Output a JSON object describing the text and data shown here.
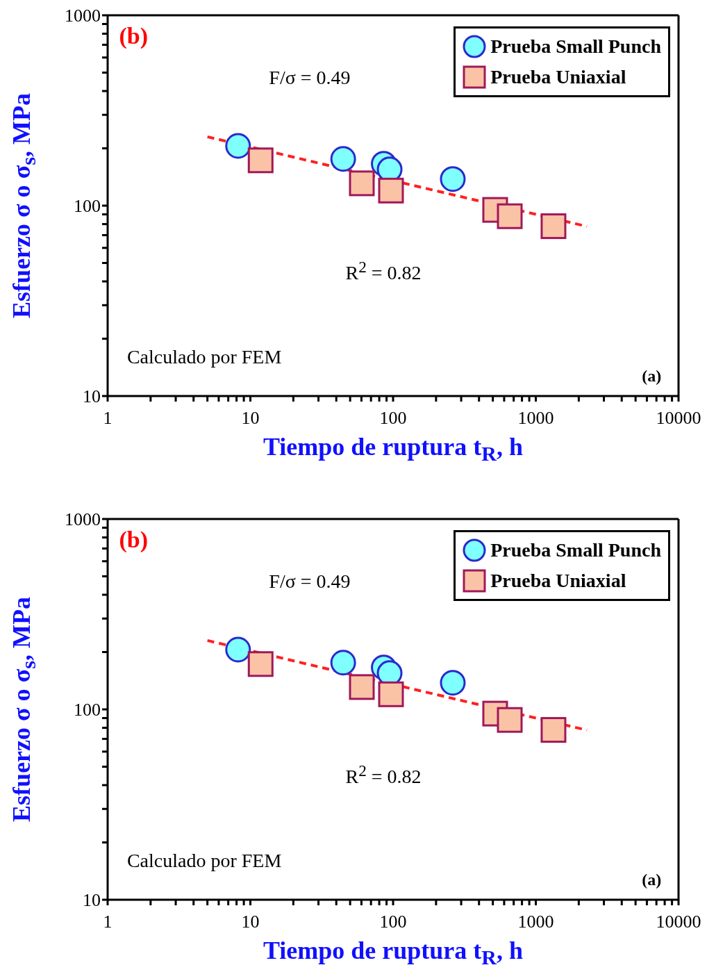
{
  "chart_data": [
    {
      "type": "scatter",
      "xlabel": "Tiempo de ruptura t$_{R}$, h",
      "ylabel": "Esfuerzo σ o σ$_{s}$, MPa",
      "log": "xy",
      "grid": false,
      "legend": "top right",
      "annotations": [
        "(b)",
        "F/σ = 0.49",
        "R$^{2}$ = 0.82",
        "Calculado por FEM",
        "(a)"
      ],
      "xlim": [
        1,
        10000
      ],
      "ylim": [
        10,
        1000
      ],
      "xticks": [
        1,
        {
          "value": 2,
          "label": null
        },
        {
          "value": 3,
          "label": null
        },
        {
          "value": 4,
          "label": null
        },
        {
          "value": 5,
          "label": null
        },
        {
          "value": 6,
          "label": null
        },
        {
          "value": 7,
          "label": null
        },
        {
          "value": 8,
          "label": null
        },
        {
          "value": 9,
          "label": null
        },
        10,
        {
          "value": 20,
          "label": null
        },
        {
          "value": 30,
          "label": null
        },
        {
          "value": 40,
          "label": null
        },
        {
          "value": 50,
          "label": null
        },
        {
          "value": 60,
          "label": null
        },
        {
          "value": 70,
          "label": null
        },
        {
          "value": 80,
          "label": null
        },
        {
          "value": 90,
          "label": null
        },
        100,
        {
          "value": 200,
          "label": null
        },
        {
          "value": 300,
          "label": null
        },
        {
          "value": 400,
          "label": null
        },
        {
          "value": 500,
          "label": null
        },
        {
          "value": 600,
          "label": null
        },
        {
          "value": 700,
          "label": null
        },
        {
          "value": 800,
          "label": null
        },
        {
          "value": 900,
          "label": null
        },
        1000,
        {
          "value": 2000,
          "label": null
        },
        {
          "value": 3000,
          "label": null
        },
        {
          "value": 4000,
          "label": null
        },
        {
          "value": 5000,
          "label": null
        },
        {
          "value": 6000,
          "label": null
        },
        {
          "value": 7000,
          "label": null
        },
        {
          "value": 8000,
          "label": null
        },
        {
          "value": 9000,
          "label": null
        },
        10000
      ],
      "yticks": [
        10,
        {
          "value": 20,
          "label": null
        },
        {
          "value": 30,
          "label": null
        },
        {
          "value": 40,
          "label": null
        },
        {
          "value": 50,
          "label": null
        },
        {
          "value": 60,
          "label": null
        },
        {
          "value": 70,
          "label": null
        },
        {
          "value": 80,
          "label": null
        },
        {
          "value": 90,
          "label": null
        },
        100,
        {
          "value": 200,
          "label": null
        },
        {
          "value": 300,
          "label": null
        },
        {
          "value": 400,
          "label": null
        },
        {
          "value": 500,
          "label": null
        },
        {
          "value": 600,
          "label": null
        },
        {
          "value": 700,
          "label": null
        },
        {
          "value": 800,
          "label": null
        },
        {
          "value": 900,
          "label": null
        },
        1000
      ],
      "series": [
        {
          "name": "Prueba Small Punch",
          "type": "scatter",
          "marker": "circle",
          "color": "#80ffff",
          "x": [
            8.2,
            44.7,
            86,
            94.6,
            262
          ],
          "values": [
            206,
            176,
            166,
            155,
            138
          ]
        },
        {
          "name": "Prueba Uniaxial",
          "type": "scatter",
          "marker": "square",
          "color": "#fbc3a6",
          "x": [
            11.8,
            60.4,
            96.7,
            519,
            657,
            1330
          ],
          "values": [
            173,
            131,
            120,
            95,
            88,
            78
          ]
        },
        {
          "type": "line",
          "line_style": "dashed",
          "color": "#ff2020",
          "x": [
            5,
            2280
          ],
          "values": [
            230,
            77.8
          ]
        }
      ]
    },
    {
      "type": "scatter",
      "xlabel": "Tiempo de ruptura t$_{R}$, h",
      "ylabel": "Esfuerzo σ o σ$_{s}$, MPa",
      "log": "xy",
      "grid": false,
      "legend": "top right",
      "annotations": [
        "(b)",
        "F/σ = 0.49",
        "R$^{2}$ = 0.82",
        "Calculado por FEM",
        "(a)"
      ],
      "xlim": [
        1,
        10000
      ],
      "ylim": [
        10,
        1000
      ],
      "xticks": [
        1,
        {
          "value": 2,
          "label": null
        },
        {
          "value": 3,
          "label": null
        },
        {
          "value": 4,
          "label": null
        },
        {
          "value": 5,
          "label": null
        },
        {
          "value": 6,
          "label": null
        },
        {
          "value": 7,
          "label": null
        },
        {
          "value": 8,
          "label": null
        },
        {
          "value": 9,
          "label": null
        },
        10,
        {
          "value": 20,
          "label": null
        },
        {
          "value": 30,
          "label": null
        },
        {
          "value": 40,
          "label": null
        },
        {
          "value": 50,
          "label": null
        },
        {
          "value": 60,
          "label": null
        },
        {
          "value": 70,
          "label": null
        },
        {
          "value": 80,
          "label": null
        },
        {
          "value": 90,
          "label": null
        },
        100,
        {
          "value": 200,
          "label": null
        },
        {
          "value": 300,
          "label": null
        },
        {
          "value": 400,
          "label": null
        },
        {
          "value": 500,
          "label": null
        },
        {
          "value": 600,
          "label": null
        },
        {
          "value": 700,
          "label": null
        },
        {
          "value": 800,
          "label": null
        },
        {
          "value": 900,
          "label": null
        },
        1000,
        {
          "value": 2000,
          "label": null
        },
        {
          "value": 3000,
          "label": null
        },
        {
          "value": 4000,
          "label": null
        },
        {
          "value": 5000,
          "label": null
        },
        {
          "value": 6000,
          "label": null
        },
        {
          "value": 7000,
          "label": null
        },
        {
          "value": 8000,
          "label": null
        },
        {
          "value": 9000,
          "label": null
        },
        10000
      ],
      "yticks": [
        10,
        {
          "value": 20,
          "label": null
        },
        {
          "value": 30,
          "label": null
        },
        {
          "value": 40,
          "label": null
        },
        {
          "value": 50,
          "label": null
        },
        {
          "value": 60,
          "label": null
        },
        {
          "value": 70,
          "label": null
        },
        {
          "value": 80,
          "label": null
        },
        {
          "value": 90,
          "label": null
        },
        100,
        {
          "value": 200,
          "label": null
        },
        {
          "value": 300,
          "label": null
        },
        {
          "value": 400,
          "label": null
        },
        {
          "value": 500,
          "label": null
        },
        {
          "value": 600,
          "label": null
        },
        {
          "value": 700,
          "label": null
        },
        {
          "value": 800,
          "label": null
        },
        {
          "value": 900,
          "label": null
        },
        1000
      ],
      "series": [
        {
          "name": "Prueba Small Punch",
          "type": "scatter",
          "marker": "circle",
          "color": "#80ffff",
          "x": [
            8.2,
            44.7,
            86,
            94.6,
            262
          ],
          "values": [
            206,
            176,
            166,
            155,
            138
          ]
        },
        {
          "name": "Prueba Uniaxial",
          "type": "scatter",
          "marker": "square",
          "color": "#fbc3a6",
          "x": [
            11.8,
            60.4,
            96.7,
            519,
            657,
            1330
          ],
          "values": [
            173,
            131,
            120,
            95,
            88,
            78
          ]
        },
        {
          "type": "line",
          "line_style": "dashed",
          "color": "#ff2020",
          "x": [
            5,
            2280
          ],
          "values": [
            230,
            77.8
          ]
        }
      ]
    }
  ]
}
